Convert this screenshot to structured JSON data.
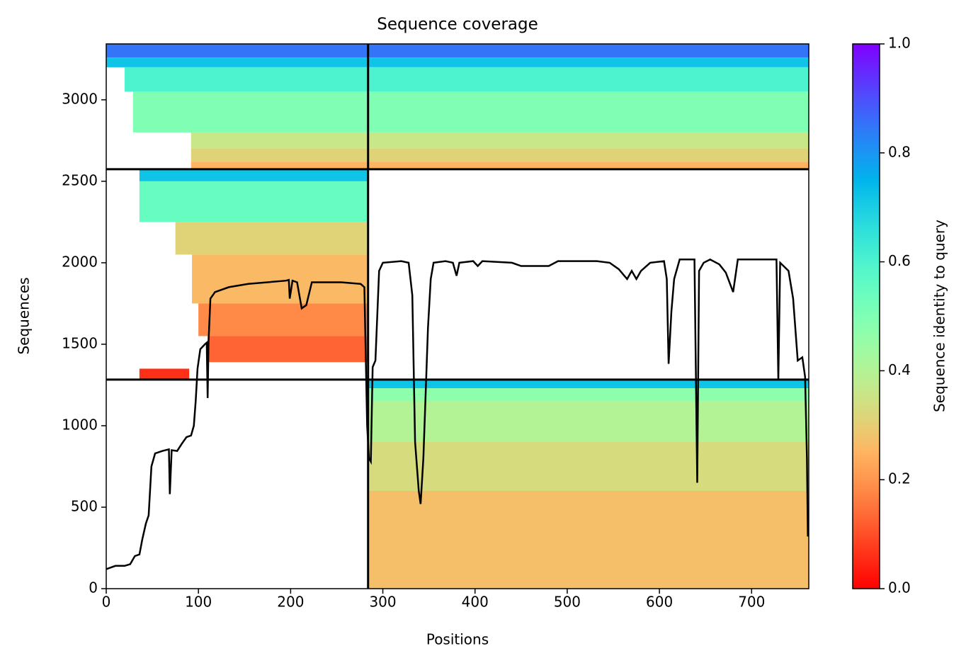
{
  "chart_data": {
    "type": "msa_coverage",
    "title": "Sequence coverage",
    "x_label": "Positions",
    "y_label": "Sequences",
    "colorbar_label": "Sequence identity to query",
    "xlim": [
      0,
      762
    ],
    "ylim": [
      0,
      3343
    ],
    "xticks": [
      0,
      100,
      200,
      300,
      400,
      500,
      600,
      700
    ],
    "yticks": [
      0,
      500,
      1000,
      1500,
      2000,
      2500,
      3000
    ],
    "clim": [
      0,
      1
    ],
    "cticks": [
      {
        "value": 0,
        "label": "0.0"
      },
      0.2,
      0.4,
      0.6,
      0.8,
      {
        "value": 1,
        "label": "1.0"
      }
    ],
    "colormap": "rainbow_r",
    "line_color": "#000000",
    "block_boundaries": {
      "x": [
        284
      ],
      "y": [
        1283,
        2574
      ]
    },
    "heatmap_rows": [
      {
        "y0": 3260,
        "y1": 3343,
        "x0": 0,
        "x1": 762,
        "identity": 0.85
      },
      {
        "y0": 3200,
        "y1": 3260,
        "x0": 0,
        "x1": 762,
        "identity": 0.72
      },
      {
        "y0": 3050,
        "y1": 3200,
        "x0": 20,
        "x1": 762,
        "identity": 0.6
      },
      {
        "y0": 2800,
        "y1": 3050,
        "x0": 29,
        "x1": 762,
        "identity": 0.5
      },
      {
        "y0": 2700,
        "y1": 2800,
        "x0": 92,
        "x1": 762,
        "identity": 0.36
      },
      {
        "y0": 2620,
        "y1": 2700,
        "x0": 92,
        "x1": 762,
        "identity": 0.31
      },
      {
        "y0": 2574,
        "y1": 2620,
        "x0": 92,
        "x1": 762,
        "identity": 0.25
      },
      {
        "y0": 2500,
        "y1": 2574,
        "x0": 36,
        "x1": 284,
        "identity": 0.72
      },
      {
        "y0": 2250,
        "y1": 2500,
        "x0": 36,
        "x1": 284,
        "identity": 0.55
      },
      {
        "y0": 2050,
        "y1": 2250,
        "x0": 75,
        "x1": 284,
        "identity": 0.31
      },
      {
        "y0": 1750,
        "y1": 2050,
        "x0": 93,
        "x1": 284,
        "identity": 0.26
      },
      {
        "y0": 1550,
        "y1": 1750,
        "x0": 100,
        "x1": 284,
        "identity": 0.18
      },
      {
        "y0": 1390,
        "y1": 1550,
        "x0": 110,
        "x1": 284,
        "identity": 0.13
      },
      {
        "y0": 1283,
        "y1": 1350,
        "x0": 36,
        "x1": 90,
        "identity": 0.06
      },
      {
        "y0": 1230,
        "y1": 1283,
        "x0": 284,
        "x1": 762,
        "identity": 0.72
      },
      {
        "y0": 1150,
        "y1": 1230,
        "x0": 284,
        "x1": 762,
        "identity": 0.47
      },
      {
        "y0": 900,
        "y1": 1150,
        "x0": 284,
        "x1": 762,
        "identity": 0.4
      },
      {
        "y0": 600,
        "y1": 900,
        "x0": 284,
        "x1": 762,
        "identity": 0.33
      },
      {
        "y0": 0,
        "y1": 600,
        "x0": 284,
        "x1": 762,
        "identity": 0.27
      }
    ],
    "x": [
      0,
      10,
      20,
      26,
      31,
      36,
      39,
      43,
      46,
      49,
      53,
      61,
      68,
      69,
      71,
      77,
      82,
      87,
      92,
      95,
      97,
      99,
      102,
      107,
      109,
      110,
      111,
      113,
      118,
      133,
      154,
      195,
      198,
      199,
      202,
      207,
      212,
      217,
      223,
      255,
      276,
      280,
      283,
      285,
      287,
      289,
      292,
      296,
      300,
      320,
      328,
      332,
      335,
      339,
      341,
      344,
      349,
      352,
      355,
      368,
      376,
      380,
      383,
      398,
      403,
      408,
      440,
      450,
      480,
      490,
      532,
      546,
      556,
      565,
      570,
      575,
      580,
      590,
      605,
      608,
      610,
      613,
      616,
      622,
      638,
      641,
      643,
      648,
      655,
      665,
      672,
      680,
      685,
      727,
      729,
      731,
      740,
      745,
      750,
      755,
      758,
      760,
      761
    ],
    "values": [
      120,
      140,
      140,
      150,
      200,
      210,
      300,
      400,
      450,
      750,
      830,
      845,
      855,
      580,
      850,
      845,
      890,
      930,
      940,
      1000,
      1150,
      1350,
      1470,
      1500,
      1510,
      1170,
      1520,
      1780,
      1820,
      1850,
      1870,
      1890,
      1895,
      1780,
      1890,
      1880,
      1720,
      1740,
      1880,
      1880,
      1870,
      1850,
      1000,
      800,
      780,
      1360,
      1400,
      1950,
      2000,
      2010,
      2000,
      1800,
      900,
      600,
      520,
      800,
      1600,
      1900,
      2000,
      2010,
      2000,
      1920,
      2000,
      2010,
      1980,
      2010,
      2000,
      1980,
      1980,
      2010,
      2010,
      2000,
      1960,
      1900,
      1950,
      1900,
      1950,
      2000,
      2010,
      1900,
      1380,
      1700,
      1900,
      2020,
      2020,
      650,
      1950,
      2000,
      2020,
      1990,
      1940,
      1820,
      2020,
      2020,
      1280,
      2000,
      1950,
      1780,
      1400,
      1420,
      1300,
      800,
      320
    ]
  }
}
